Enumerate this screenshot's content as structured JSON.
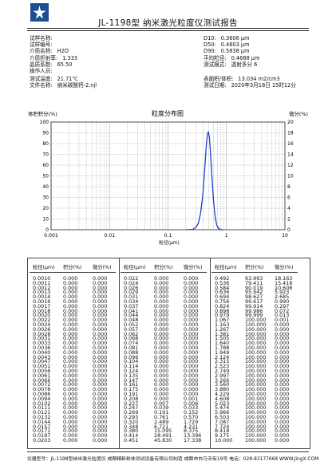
{
  "header": {
    "title": "JL-1198型 纳米激光粒度仪测试报告"
  },
  "info": {
    "left": [
      {
        "label": "试样名称:",
        "value": ""
      },
      {
        "label": "试样编号:",
        "value": ""
      },
      {
        "label": "介质名称:",
        "value": "H2O"
      },
      {
        "label": "介质折射率:",
        "value": "1.333"
      },
      {
        "label": "晶质系数:",
        "value": "65.50"
      },
      {
        "label": "操作人员:",
        "value": ""
      },
      {
        "label": "测试温度:",
        "value": "21.71℃"
      },
      {
        "label": "文件名称:",
        "value": "纳米碳酸钙-2.njl"
      }
    ],
    "right": [
      {
        "label": "D10:",
        "value": "0.3606 µm"
      },
      {
        "label": "D50:",
        "value": "0.4603 µm"
      },
      {
        "label": "D90:",
        "value": "0.5838 µm"
      },
      {
        "label": "平均粒径:",
        "value": "0.4688 µm"
      },
      {
        "label": "测试模式:",
        "value": "透射多分 6"
      },
      {
        "label": "",
        "value": ""
      },
      {
        "label": "表面积/体积:",
        "value": "13.034 m2/cm3"
      },
      {
        "label": "测试日期:",
        "value": "2020年3月18日  15时12分"
      }
    ]
  },
  "chart_data": {
    "type": "line",
    "title": "粒度分布图",
    "ylabel_left": "体积积分(%)",
    "ylabel_right": "微分(%)",
    "xlabel": "粒径(µm)",
    "x_scale": "log",
    "xlim": [
      0.001,
      10
    ],
    "x_ticks": [
      "0.001",
      "0.01",
      "0.1",
      "1",
      "10"
    ],
    "ylim_left": [
      0,
      100
    ],
    "ylim_right": [
      0,
      20
    ],
    "y_ticks_left": [
      "0",
      "10",
      "20",
      "30",
      "40",
      "50",
      "60",
      "70",
      "80",
      "90",
      "100"
    ],
    "y_ticks_right": [
      "0",
      "2",
      "4",
      "6",
      "8",
      "10",
      "12",
      "14",
      "16",
      "18",
      "20"
    ],
    "grid": true,
    "series": [
      {
        "axis": "right",
        "color": "#1f3fd0",
        "x": [
          0.2,
          0.26,
          0.3,
          0.33,
          0.36,
          0.39,
          0.42,
          0.45,
          0.47,
          0.49,
          0.51,
          0.53,
          0.56,
          0.6,
          0.64,
          0.68,
          0.73,
          0.8,
          0.9
        ],
        "y": [
          0,
          0.05,
          0.4,
          1.2,
          3.0,
          6.0,
          10.5,
          15.3,
          17.6,
          18.2,
          17.2,
          14.8,
          10.4,
          5.5,
          2.4,
          0.9,
          0.25,
          0.03,
          0
        ]
      }
    ]
  },
  "table": {
    "headers": [
      "粒径(µm)",
      "积分(%)",
      "微分(%)"
    ],
    "columns": [
      [
        [
          "0.0010",
          "0.000",
          "0.000"
        ],
        [
          "0.0011",
          "0.000",
          "0.000"
        ],
        [
          "0.0012",
          "0.000",
          "0.000"
        ],
        [
          "0.0013",
          "0.000",
          "0.000"
        ],
        [
          "0.0014",
          "0.000",
          "0.000"
        ],
        [
          "0.0016",
          "0.000",
          "0.000"
        ],
        [
          "0.0017",
          "0.000",
          "0.000"
        ],
        [
          "0.0018",
          "0.000",
          "0.000"
        ],
        [
          "0.0020",
          "0.000",
          "0.000"
        ],
        [
          "0.0022",
          "0.000",
          "0.000"
        ],
        [
          "0.0024",
          "0.000",
          "0.000"
        ],
        [
          "0.0026",
          "0.000",
          "0.000"
        ],
        [
          "0.0028",
          "0.000",
          "0.000"
        ],
        [
          "0.0031",
          "0.000",
          "0.000"
        ],
        [
          "0.0033",
          "0.000",
          "0.000"
        ],
        [
          "0.0036",
          "0.000",
          "0.000"
        ],
        [
          "0.0040",
          "0.000",
          "0.000"
        ],
        [
          "0.0043",
          "0.000",
          "0.000"
        ],
        [
          "0.0047",
          "0.000",
          "0.000"
        ],
        [
          "0.0051",
          "0.000",
          "0.000"
        ],
        [
          "0.0056",
          "0.000",
          "0.000"
        ],
        [
          "0.0061",
          "0.000",
          "0.000"
        ],
        [
          "0.0066",
          "0.000",
          "0.000"
        ],
        [
          "0.0072",
          "0.000",
          "0.000"
        ],
        [
          "0.0078",
          "0.000",
          "0.000"
        ],
        [
          "0.0086",
          "0.000",
          "0.000"
        ],
        [
          "0.0094",
          "0.000",
          "0.000"
        ],
        [
          "0.0102",
          "0.000",
          "0.000"
        ],
        [
          "0.0111",
          "0.000",
          "0.000"
        ],
        [
          "0.0121",
          "0.000",
          "0.000"
        ],
        [
          "0.0132",
          "0.000",
          "0.000"
        ],
        [
          "0.0144",
          "0.000",
          "0.000"
        ],
        [
          "0.0157",
          "0.000",
          "0.000"
        ],
        [
          "0.0171",
          "0.000",
          "0.000"
        ],
        [
          "0.0187",
          "0.000",
          "0.000"
        ],
        [
          "0.0203",
          "0.000",
          "0.000"
        ]
      ],
      [
        [
          "0.022",
          "0.000",
          "0.000"
        ],
        [
          "0.024",
          "0.000",
          "0.000"
        ],
        [
          "0.026",
          "0.000",
          "0.000"
        ],
        [
          "0.029",
          "0.000",
          "0.000"
        ],
        [
          "0.031",
          "0.000",
          "0.000"
        ],
        [
          "0.034",
          "0.000",
          "0.000"
        ],
        [
          "0.037",
          "0.000",
          "0.000"
        ],
        [
          "0.041",
          "0.000",
          "0.000"
        ],
        [
          "0.044",
          "0.000",
          "0.000"
        ],
        [
          "0.048",
          "0.000",
          "0.000"
        ],
        [
          "0.052",
          "0.000",
          "0.000"
        ],
        [
          "0.057",
          "0.000",
          "0.000"
        ],
        [
          "0.062",
          "0.000",
          "0.000"
        ],
        [
          "0.068",
          "0.000",
          "0.000"
        ],
        [
          "0.074",
          "0.000",
          "0.000"
        ],
        [
          "0.081",
          "0.000",
          "0.000"
        ],
        [
          "0.088",
          "0.000",
          "0.000"
        ],
        [
          "0.096",
          "0.000",
          "0.000"
        ],
        [
          "0.104",
          "0.000",
          "0.000"
        ],
        [
          "0.114",
          "0.000",
          "0.000"
        ],
        [
          "0.124",
          "0.000",
          "0.000"
        ],
        [
          "0.135",
          "0.000",
          "0.000"
        ],
        [
          "0.147",
          "0.000",
          "0.000"
        ],
        [
          "0.161",
          "0.000",
          "0.000"
        ],
        [
          "0.175",
          "0.000",
          "0.000"
        ],
        [
          "0.191",
          "0.000",
          "0.000"
        ],
        [
          "0.208",
          "0.000",
          "0.001"
        ],
        [
          "0.227",
          "0.007",
          "0.006"
        ],
        [
          "0.247",
          "0.039",
          "0.033"
        ],
        [
          "0.269",
          "0.191",
          "0.152"
        ],
        [
          "0.293",
          "0.761",
          "0.570"
        ],
        [
          "0.320",
          "2.489",
          "1.729"
        ],
        [
          "0.348",
          "6.721",
          "4.231"
        ],
        [
          "0.380",
          "15.095",
          "8.375"
        ],
        [
          "0.414",
          "28.491",
          "13.396"
        ],
        [
          "0.451",
          "45.830",
          "17.338"
        ]
      ],
      [
        [
          "0.492",
          "63.993",
          "18.163"
        ],
        [
          "0.536",
          "79.411",
          "15.418"
        ],
        [
          "0.584",
          "90.019",
          "10.608"
        ],
        [
          "0.636",
          "95.942",
          "5.923"
        ],
        [
          "0.694",
          "98.627",
          "2.685"
        ],
        [
          "0.756",
          "99.617",
          "0.990"
        ],
        [
          "0.824",
          "99.914",
          "0.297"
        ],
        [
          "0.898",
          "99.986",
          "0.072"
        ],
        [
          "0.979",
          "99.999",
          "0.013"
        ],
        [
          "1.067",
          "100.000",
          "0.001"
        ],
        [
          "1.163",
          "100.000",
          "0.000"
        ],
        [
          "1.267",
          "100.000",
          "0.000"
        ],
        [
          "1.381",
          "100.000",
          "0.000"
        ],
        [
          "1.505",
          "100.000",
          "0.000"
        ],
        [
          "1.640",
          "100.000",
          "0.000"
        ],
        [
          "1.788",
          "100.000",
          "0.000"
        ],
        [
          "1.949",
          "100.000",
          "0.000"
        ],
        [
          "2.124",
          "100.000",
          "0.000"
        ],
        [
          "2.315",
          "100.000",
          "0.000"
        ],
        [
          "2.523",
          "100.000",
          "0.000"
        ],
        [
          "2.749",
          "100.000",
          "0.000"
        ],
        [
          "2.997",
          "100.000",
          "0.000"
        ],
        [
          "3.266",
          "100.000",
          "0.000"
        ],
        [
          "3.560",
          "100.000",
          "0.000"
        ],
        [
          "3.880",
          "100.000",
          "0.000"
        ],
        [
          "4.229",
          "100.000",
          "0.000"
        ],
        [
          "4.608",
          "100.000",
          "0.000"
        ],
        [
          "5.023",
          "100.000",
          "0.000"
        ],
        [
          "5.474",
          "100.000",
          "0.000"
        ],
        [
          "5.966",
          "100.000",
          "0.000"
        ],
        [
          "6.503",
          "100.000",
          "0.000"
        ],
        [
          "7.087",
          "100.000",
          "0.000"
        ],
        [
          "7.724",
          "100.000",
          "0.000"
        ],
        [
          "8.418",
          "100.000",
          "0.000"
        ],
        [
          "9.175",
          "100.000",
          "0.000"
        ],
        [
          "10.000",
          "100.000",
          "0.000"
        ]
      ]
    ]
  },
  "footer": {
    "text": "仪器型号：JL-1198型纳米激光粒度仪  成都精新粉体测试设备有限公司制造  成都市白马寺街19号 电话：028-83177668 WWW.JingX.COM"
  }
}
